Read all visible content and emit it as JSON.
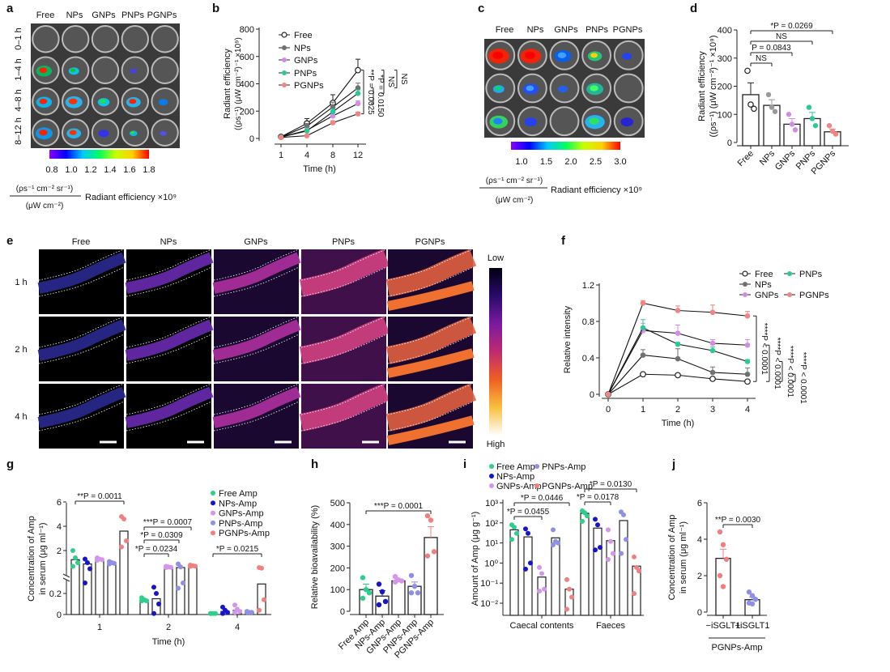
{
  "panels": {
    "a": {
      "letter": "a",
      "columns": [
        "Free",
        "NPs",
        "GNPs",
        "PNPs",
        "PGNPs"
      ],
      "rows": [
        "0–1 h",
        "1–4 h",
        "4–8 h",
        "8–12 h"
      ],
      "colorbar_ticks": [
        "0.8",
        "1.0",
        "1.2",
        "1.4",
        "1.6",
        "1.8"
      ],
      "unit_numerator": "(ρs⁻¹ cm⁻² sr⁻¹)",
      "unit_denominator": "(μW cm⁻²)",
      "unit_label": "Radiant efficiency ×10⁹"
    },
    "c": {
      "letter": "c",
      "columns": [
        "Free",
        "NPs",
        "GNPs",
        "PNPs",
        "PGNPs"
      ],
      "colorbar_ticks": [
        "1.0",
        "1.5",
        "2.0",
        "2.5",
        "3.0"
      ],
      "unit_numerator": "(ρs⁻¹ cm⁻² sr⁻¹)",
      "unit_denominator": "(μW cm⁻²)",
      "unit_label": "Radiant efficiency ×10⁹"
    },
    "e": {
      "letter": "e",
      "columns": [
        "Free",
        "NPs",
        "GNPs",
        "PNPs",
        "PGNPs"
      ],
      "rows": [
        "1 h",
        "2 h",
        "4 h"
      ],
      "colorbar_low": "Low",
      "colorbar_high": "High"
    },
    "b": {
      "letter": "b"
    },
    "d": {
      "letter": "d"
    },
    "f": {
      "letter": "f"
    },
    "g": {
      "letter": "g"
    },
    "h": {
      "letter": "h"
    },
    "i": {
      "letter": "i"
    },
    "j": {
      "letter": "j"
    }
  },
  "colors": {
    "Free": "#222222",
    "NPs": "#707070",
    "GNPs": "#d18ce8",
    "PNPs": "#2dc994",
    "PGNPs": "#f08585",
    "FreeAmp": "#2ecf8c",
    "NPsAmp": "#1616c8",
    "GNPsAmp": "#d495ea",
    "PNPsAmp": "#8f8fe6",
    "PGNPsAmp": "#f08080"
  },
  "chart_data": [
    {
      "id": "b",
      "type": "line",
      "xlabel": "Time (h)",
      "ylabel": "Radiant efficiency",
      "ylabel2": "((ρs⁻¹) (μW cm⁻²)⁻¹ ×10⁹)",
      "x": [
        "1",
        "4",
        "8",
        "12"
      ],
      "ylim": [
        0,
        800
      ],
      "yticks": [
        "0",
        "200",
        "400",
        "600",
        "800"
      ],
      "series": [
        {
          "name": "Free",
          "values": [
            12,
            110,
            260,
            500
          ],
          "err": [
            8,
            35,
            60,
            80
          ],
          "open": true
        },
        {
          "name": "NPs",
          "values": [
            10,
            90,
            230,
            370
          ],
          "err": [
            6,
            20,
            35,
            35
          ]
        },
        {
          "name": "GNPs",
          "values": [
            10,
            60,
            165,
            255
          ],
          "err": [
            5,
            12,
            20,
            20
          ]
        },
        {
          "name": "PNPs",
          "values": [
            10,
            55,
            195,
            330
          ],
          "err": [
            5,
            10,
            20,
            25
          ]
        },
        {
          "name": "PGNPs",
          "values": [
            8,
            20,
            115,
            180
          ],
          "err": [
            4,
            6,
            15,
            12
          ]
        }
      ],
      "annotations": [
        "**P = 0.0025",
        "*P = 0.0150",
        "NS",
        "NS"
      ],
      "legend": "top-left"
    },
    {
      "id": "d",
      "type": "bar",
      "ylabel": "Radiant efficiency",
      "ylabel2": "((ρs⁻¹) (μW cm⁻²)⁻¹ ×10⁹)",
      "categories": [
        "Free",
        "NPs",
        "GNPs",
        "PNPs",
        "PGNPs"
      ],
      "values": [
        170,
        132,
        65,
        85,
        38
      ],
      "err": [
        42,
        20,
        20,
        22,
        10
      ],
      "points": [
        [
          255,
          135,
          120
        ],
        [
          170,
          125,
          110
        ],
        [
          100,
          65,
          45
        ],
        [
          125,
          85,
          60
        ],
        [
          60,
          40,
          30
        ]
      ],
      "ylim": [
        0,
        400
      ],
      "yticks": [
        "0",
        "100",
        "200",
        "300",
        "400"
      ],
      "annotations": [
        "NS",
        "P = 0.0843",
        "NS",
        "*P = 0.0269"
      ]
    },
    {
      "id": "f",
      "type": "line",
      "xlabel": "Time (h)",
      "ylabel": "Relative intensity",
      "x": [
        "0",
        "1",
        "2",
        "3",
        "4"
      ],
      "ylim": [
        0,
        1.2
      ],
      "yticks": [
        "0",
        "0.4",
        "0.8",
        "1.2"
      ],
      "series": [
        {
          "name": "Free",
          "values": [
            0,
            0.22,
            0.21,
            0.17,
            0.14
          ],
          "err": [
            0,
            0.01,
            0.01,
            0.01,
            0.01
          ],
          "open": true
        },
        {
          "name": "NPs",
          "values": [
            0,
            0.43,
            0.39,
            0.24,
            0.22
          ],
          "err": [
            0,
            0.06,
            0.11,
            0.06,
            0.07
          ]
        },
        {
          "name": "GNPs",
          "values": [
            0,
            0.7,
            0.67,
            0.56,
            0.54
          ],
          "err": [
            0,
            0.08,
            0.09,
            0.04,
            0.06
          ]
        },
        {
          "name": "PNPs",
          "values": [
            0,
            0.73,
            0.55,
            0.48,
            0.36
          ],
          "err": [
            0,
            0.09,
            0.02,
            0.04,
            0.02
          ]
        },
        {
          "name": "PGNPs",
          "values": [
            0,
            1.0,
            0.92,
            0.9,
            0.86
          ],
          "err": [
            0,
            0.03,
            0.05,
            0.08,
            0.05
          ]
        }
      ],
      "annotations": [
        "****P < 0.0001",
        "****P < 0.0001",
        "****P < 0.0001",
        "****P < 0.0001"
      ],
      "legend": "top-right"
    },
    {
      "id": "g",
      "type": "bar",
      "xlabel": "Time (h)",
      "ylabel": "Concentration of Amp",
      "ylabel2": "in serum (μg ml⁻¹)",
      "categories": [
        "1",
        "2",
        "4"
      ],
      "yticks": [
        "0",
        "0.2",
        "2",
        "4",
        "6"
      ],
      "axis_break": true,
      "series": [
        {
          "name": "Free Amp",
          "values": [
            1.25,
            0.14,
            0.01
          ],
          "points": [
            [
              2.0,
              1.4,
              1.0,
              0.7
            ],
            [
              0.16,
              0.14,
              0.13,
              0.13
            ],
            [
              0.01,
              0.01,
              0.01,
              0.01
            ]
          ]
        },
        {
          "name": "NPs-Amp",
          "values": [
            0.9,
            0.15,
            0.03
          ],
          "points": [
            [
              1.3,
              1.0,
              0.5,
              0.3
            ],
            [
              0.26,
              0.2,
              0.1,
              0.01
            ],
            [
              0.07,
              0.04,
              0.02,
              0.01
            ]
          ]
        },
        {
          "name": "GNPs-Amp",
          "values": [
            1.3,
            0.65,
            0.04
          ],
          "points": [
            [
              1.4,
              1.3,
              1.25,
              1.2
            ],
            [
              0.7,
              0.65,
              0.62,
              0.6
            ],
            [
              0.09,
              0.05,
              0.03,
              0.02
            ]
          ]
        },
        {
          "name": "PNPs-Amp",
          "values": [
            1.0,
            0.6,
            0.02
          ],
          "points": [
            [
              1.1,
              1.0,
              0.95,
              0.9
            ],
            [
              0.9,
              0.65,
              0.3,
              0.25
            ],
            [
              0.03,
              0.02,
              0.02,
              0.02
            ]
          ]
        },
        {
          "name": "PGNPs-Amp",
          "values": [
            3.6,
            0.75,
            0.29
          ],
          "points": [
            [
              4.8,
              4.6,
              2.8,
              2.3
            ],
            [
              0.8,
              0.75,
              0.72,
              0.7
            ],
            [
              0.6,
              0.55,
              0.14,
              0.04
            ]
          ]
        }
      ],
      "annotations": [
        "**P = 0.0011",
        "***P = 0.0007",
        "*P = 0.0309",
        "*P = 0.0234",
        "*P = 0.0215"
      ],
      "legend": "top-right"
    },
    {
      "id": "h",
      "type": "bar",
      "ylabel": "Relative bioavailability (%)",
      "categories": [
        "Free Amp",
        "NPs-Amp",
        "GNPs-Amp",
        "PNPs-Amp",
        "PGNPs-Amp"
      ],
      "values": [
        100,
        70,
        140,
        115,
        340
      ],
      "err": [
        25,
        25,
        8,
        20,
        50
      ],
      "points": [
        [
          155,
          100,
          85,
          60
        ],
        [
          125,
          90,
          45,
          30
        ],
        [
          160,
          145,
          140,
          135
        ],
        [
          165,
          115,
          85,
          85
        ],
        [
          440,
          420,
          275,
          255
        ]
      ],
      "ylim": [
        0,
        500
      ],
      "yticks": [
        "0",
        "100",
        "200",
        "300",
        "400",
        "500"
      ],
      "annotations": [
        "***P = 0.0001"
      ]
    },
    {
      "id": "i",
      "type": "bar",
      "scale": "log",
      "ylabel": "Amount of Amp (μg g⁻¹)",
      "groups": [
        "Caecal contents",
        "Faeces"
      ],
      "series": [
        {
          "name": "Free Amp",
          "values": [
            45,
            300
          ],
          "points": [
            [
              80,
              60,
              30,
              15
            ],
            [
              400,
              320,
              220,
              120
            ]
          ]
        },
        {
          "name": "NPs-Amp",
          "values": [
            20,
            55
          ],
          "points": [
            [
              50,
              30,
              1.0,
              0.5
            ],
            [
              150,
              80,
              6,
              4.5
            ]
          ]
        },
        {
          "name": "GNPs-Amp",
          "values": [
            0.2,
            13
          ],
          "points": [
            [
              0.6,
              0.3,
              0.05,
              0.04
            ],
            [
              45,
              12,
              3,
              1.5
            ]
          ]
        },
        {
          "name": "PNPs-Amp",
          "values": [
            18,
            130
          ],
          "points": [
            [
              45,
              12,
              10,
              8
            ],
            [
              350,
              250,
              15,
              3
            ]
          ]
        },
        {
          "name": "PGNPs-Amp",
          "values": [
            0.05,
            0.7
          ],
          "points": [
            [
              0.15,
              0.05,
              0.02,
              0.005
            ],
            [
              2,
              0.6,
              0.4,
              0.03
            ]
          ]
        }
      ],
      "yticks": [
        "10⁻²",
        "10⁻¹",
        "10⁰",
        "10¹",
        "10²",
        "10³"
      ],
      "ylim_log": [
        -2,
        3
      ],
      "annotations": [
        "*P = 0.0455",
        "*P = 0.0446",
        "*P = 0.0178",
        "*P = 0.0130"
      ],
      "legend": "top"
    },
    {
      "id": "j",
      "type": "bar",
      "ylabel": "Concentration of Amp",
      "ylabel2": "in serum (μg ml⁻¹)",
      "categories": [
        "−iSGLT1",
        "+iSGLT1"
      ],
      "group_label": "PGNPs-Amp",
      "values": [
        2.95,
        0.68
      ],
      "err": [
        0.5,
        0.15
      ],
      "points": [
        [
          4.4,
          3.7,
          2.9,
          2.0,
          1.4
        ],
        [
          1.1,
          0.9,
          0.7,
          0.5,
          0.45
        ]
      ],
      "ylim": [
        0,
        6
      ],
      "yticks": [
        "0",
        "2",
        "4",
        "6"
      ],
      "annotations": [
        "**P = 0.0030"
      ]
    }
  ]
}
